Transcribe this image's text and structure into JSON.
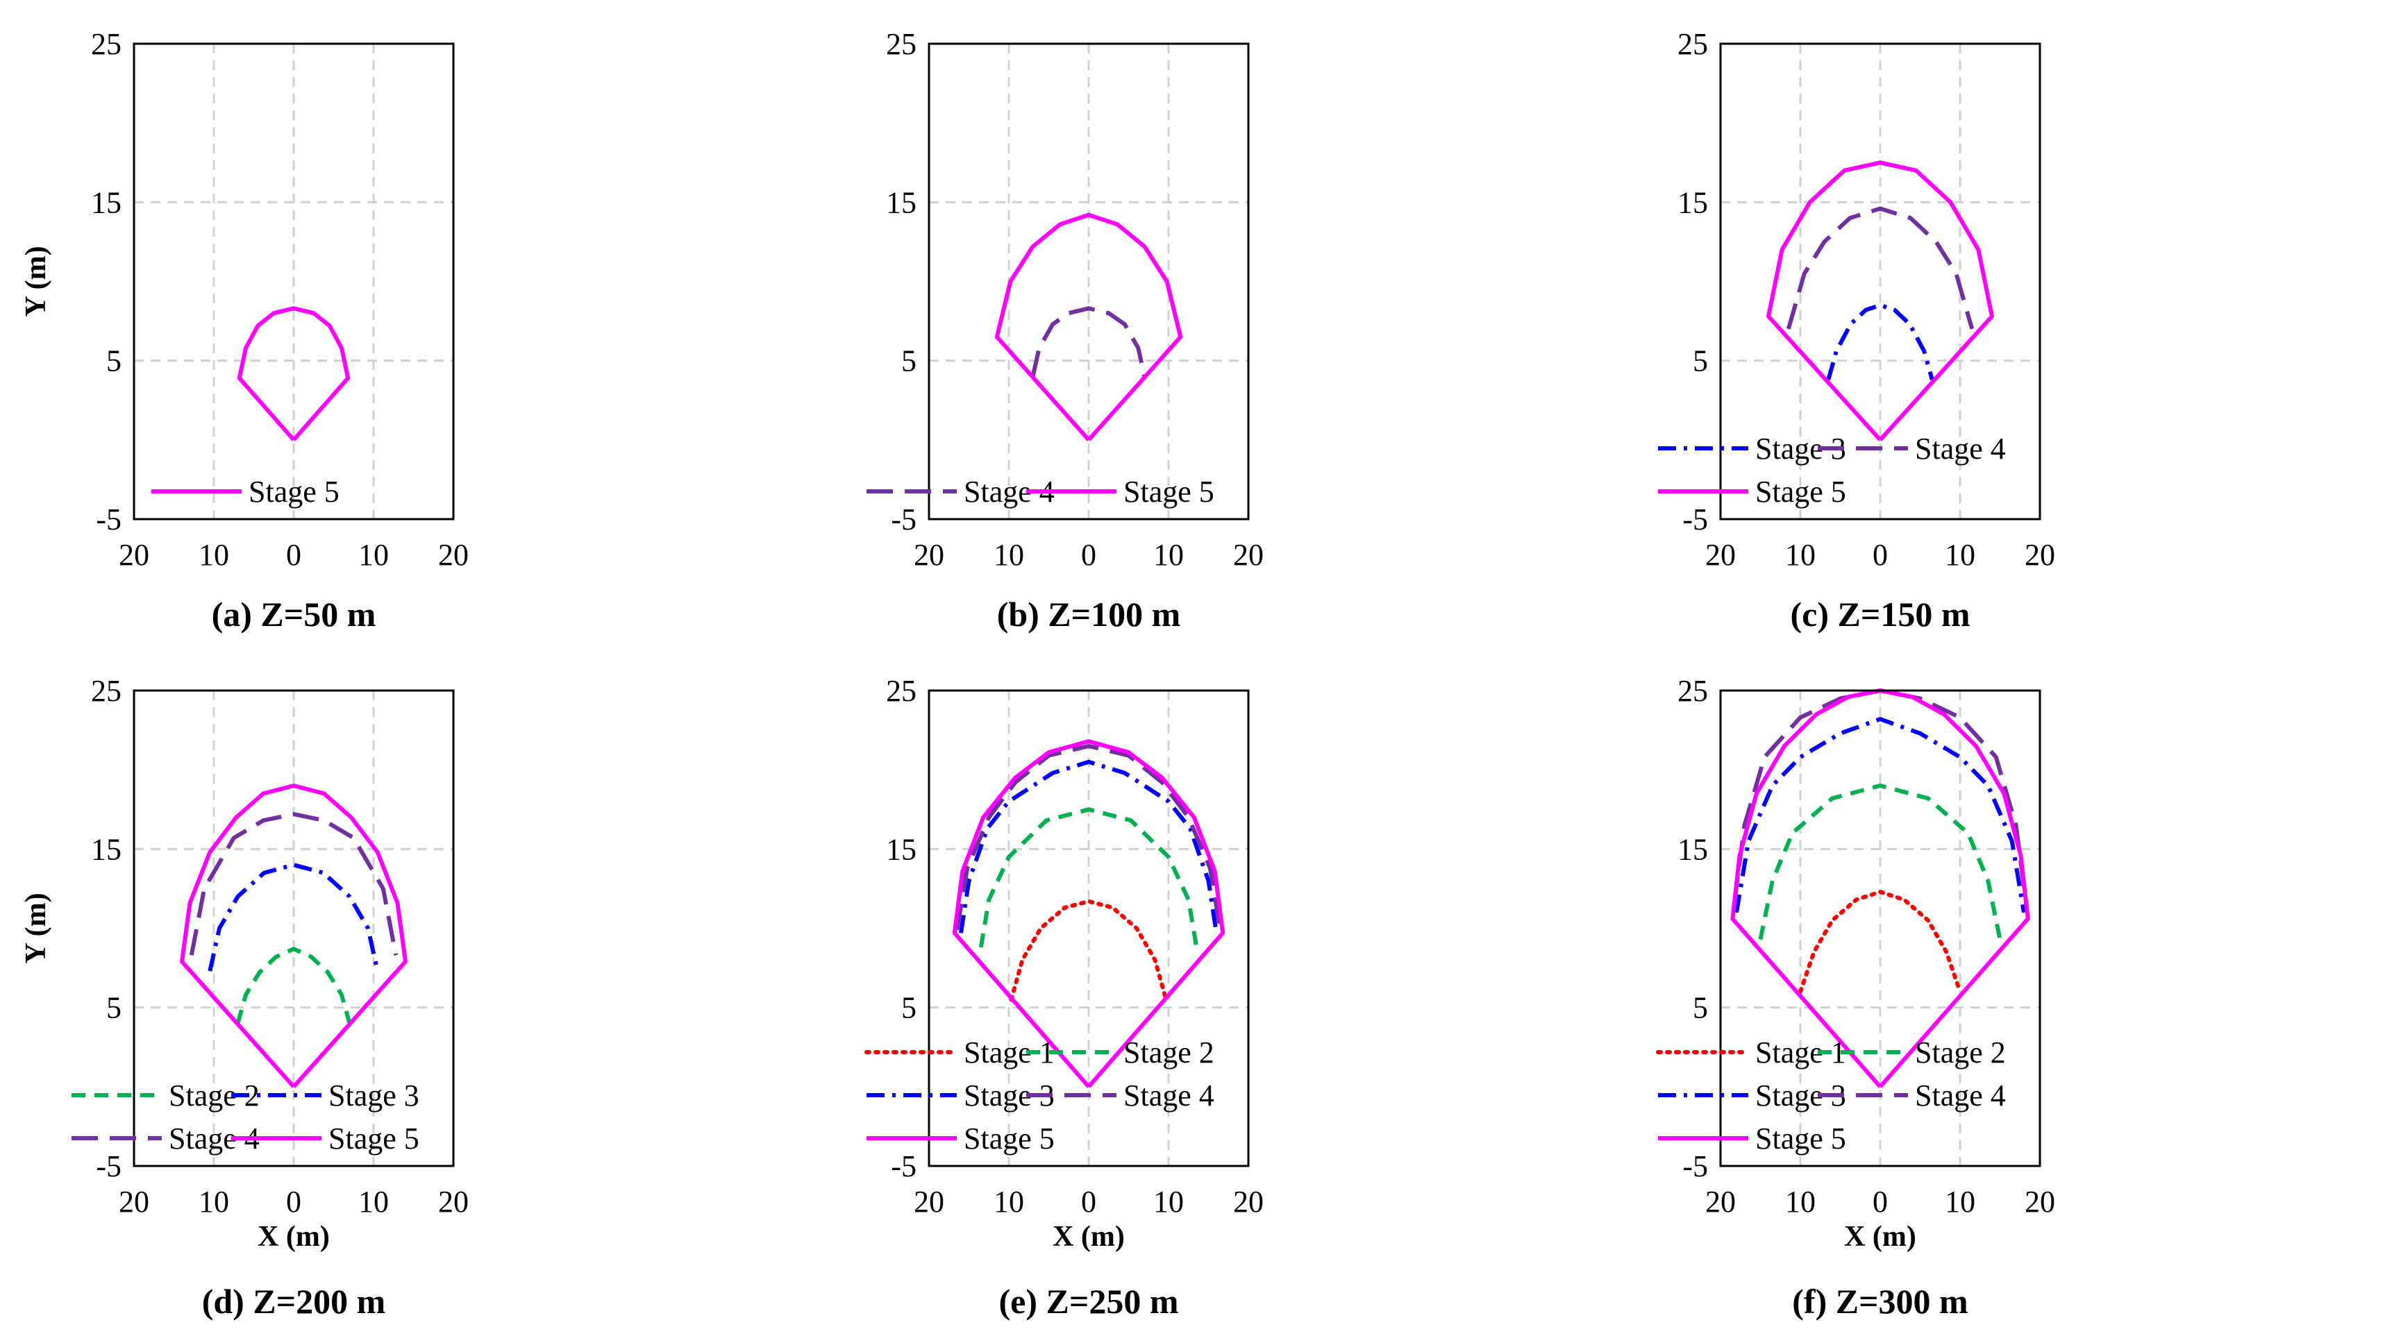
{
  "styles": {
    "Stage 1": {
      "color": "#ff0000",
      "dash": "dotted"
    },
    "Stage 2": {
      "color": "#00b050",
      "dash": "dashed"
    },
    "Stage 3": {
      "color": "#0000ff",
      "dash": "dashdot"
    },
    "Stage 4": {
      "color": "#7030a0",
      "dash": "longdash"
    },
    "Stage 5": {
      "color": "#ff00ff",
      "dash": "solid"
    }
  },
  "chart_data": [
    {
      "type": "line",
      "caption": "(a) Z=50 m",
      "xlabel": "",
      "ylabel": "Y (m)",
      "xlim": [
        -20,
        20
      ],
      "ylim": [
        -5,
        25
      ],
      "xtick_labels": [
        "20",
        "10",
        "0",
        "10",
        "20"
      ],
      "ytick_labels": [
        "-5",
        "5",
        "15",
        "25"
      ],
      "grid": true,
      "series": [
        {
          "name": "Stage 5",
          "points": [
            [
              0,
              0
            ],
            [
              6.8,
              3.9
            ],
            [
              6,
              5.8
            ],
            [
              4.5,
              7.2
            ],
            [
              2.5,
              8
            ],
            [
              0,
              8.3
            ],
            [
              -2.5,
              8
            ],
            [
              -4.5,
              7.2
            ],
            [
              -6,
              5.8
            ],
            [
              -6.8,
              3.9
            ],
            [
              0,
              0
            ]
          ]
        }
      ]
    },
    {
      "type": "line",
      "caption": "(b) Z=100 m",
      "xlabel": "",
      "ylabel": "",
      "xlim": [
        -20,
        20
      ],
      "ylim": [
        -5,
        25
      ],
      "xtick_labels": [
        "20",
        "10",
        "0",
        "10",
        "20"
      ],
      "ytick_labels": [
        "-5",
        "5",
        "15",
        "25"
      ],
      "grid": true,
      "series": [
        {
          "name": "Stage 4",
          "points": [
            [
              -7,
              4
            ],
            [
              -6.2,
              5.8
            ],
            [
              -4.5,
              7.3
            ],
            [
              -2.5,
              8
            ],
            [
              0,
              8.3
            ],
            [
              2.5,
              8
            ],
            [
              4.5,
              7.3
            ],
            [
              6.2,
              5.8
            ],
            [
              7,
              4
            ]
          ]
        },
        {
          "name": "Stage 5",
          "points": [
            [
              0,
              0
            ],
            [
              11.5,
              6.5
            ],
            [
              9.8,
              10
            ],
            [
              7,
              12.2
            ],
            [
              3.6,
              13.6
            ],
            [
              0,
              14.2
            ],
            [
              -3.6,
              13.6
            ],
            [
              -7,
              12.2
            ],
            [
              -9.8,
              10
            ],
            [
              -11.5,
              6.5
            ],
            [
              0,
              0
            ]
          ]
        }
      ]
    },
    {
      "type": "line",
      "caption": "(c) Z=150 m",
      "xlabel": "",
      "ylabel": "",
      "xlim": [
        -20,
        20
      ],
      "ylim": [
        -5,
        25
      ],
      "xtick_labels": [
        "20",
        "10",
        "0",
        "10",
        "20"
      ],
      "ytick_labels": [
        "-5",
        "5",
        "15",
        "25"
      ],
      "grid": true,
      "series": [
        {
          "name": "Stage 3",
          "points": [
            [
              -6.5,
              3.8
            ],
            [
              -5.5,
              5.6
            ],
            [
              -3.7,
              7.3
            ],
            [
              -1.8,
              8.2
            ],
            [
              0,
              8.5
            ],
            [
              1.8,
              8.2
            ],
            [
              3.7,
              7.3
            ],
            [
              5.5,
              5.6
            ],
            [
              6.5,
              3.8
            ]
          ]
        },
        {
          "name": "Stage 4",
          "points": [
            [
              -11.5,
              7
            ],
            [
              -9.5,
              10.5
            ],
            [
              -7,
              12.5
            ],
            [
              -3.8,
              14
            ],
            [
              0,
              14.6
            ],
            [
              3.8,
              14
            ],
            [
              7,
              12.5
            ],
            [
              9.5,
              10.5
            ],
            [
              11.5,
              7
            ]
          ]
        },
        {
          "name": "Stage 5",
          "points": [
            [
              0,
              0
            ],
            [
              14,
              7.8
            ],
            [
              12.3,
              12
            ],
            [
              8.8,
              15
            ],
            [
              4.5,
              17
            ],
            [
              0,
              17.5
            ],
            [
              -4.5,
              17
            ],
            [
              -8.8,
              15
            ],
            [
              -12.3,
              12
            ],
            [
              -14,
              7.8
            ],
            [
              0,
              0
            ]
          ]
        }
      ]
    },
    {
      "type": "line",
      "caption": "(d) Z=200 m",
      "xlabel": "X (m)",
      "ylabel": "Y (m)",
      "xlim": [
        -20,
        20
      ],
      "ylim": [
        -5,
        25
      ],
      "xtick_labels": [
        "20",
        "10",
        "0",
        "10",
        "20"
      ],
      "ytick_labels": [
        "-5",
        "5",
        "15",
        "25"
      ],
      "grid": true,
      "series": [
        {
          "name": "Stage 2",
          "points": [
            [
              -7,
              4
            ],
            [
              -6,
              5.8
            ],
            [
              -4.3,
              7.2
            ],
            [
              -2.2,
              8.2
            ],
            [
              0,
              8.7
            ],
            [
              2.2,
              8.2
            ],
            [
              4.3,
              7.2
            ],
            [
              6,
              5.8
            ],
            [
              7,
              4
            ]
          ]
        },
        {
          "name": "Stage 3",
          "points": [
            [
              -10.5,
              7.3
            ],
            [
              -9.3,
              10
            ],
            [
              -7,
              12
            ],
            [
              -3.7,
              13.5
            ],
            [
              0,
              14
            ],
            [
              3.7,
              13.5
            ],
            [
              7,
              12
            ],
            [
              9.3,
              10
            ],
            [
              10.5,
              7.3
            ]
          ]
        },
        {
          "name": "Stage 4",
          "points": [
            [
              -12.8,
              8.3
            ],
            [
              -11.2,
              12.5
            ],
            [
              -7.5,
              15.7
            ],
            [
              -3.8,
              16.8
            ],
            [
              0,
              17.2
            ],
            [
              3.8,
              16.8
            ],
            [
              7.5,
              15.7
            ],
            [
              11.2,
              12.5
            ],
            [
              12.8,
              8.3
            ]
          ]
        },
        {
          "name": "Stage 5",
          "points": [
            [
              0,
              0
            ],
            [
              14,
              7.9
            ],
            [
              13,
              11.6
            ],
            [
              10.5,
              14.8
            ],
            [
              7.2,
              17
            ],
            [
              3.8,
              18.5
            ],
            [
              0,
              19
            ],
            [
              -3.8,
              18.5
            ],
            [
              -7.2,
              17
            ],
            [
              -10.5,
              14.8
            ],
            [
              -13,
              11.6
            ],
            [
              -14,
              7.9
            ],
            [
              0,
              0
            ]
          ]
        }
      ]
    },
    {
      "type": "line",
      "caption": "(e) Z=250 m",
      "xlabel": "X (m)",
      "ylabel": "",
      "xlim": [
        -20,
        20
      ],
      "ylim": [
        -5,
        25
      ],
      "xtick_labels": [
        "20",
        "10",
        "0",
        "10",
        "20"
      ],
      "ytick_labels": [
        "-5",
        "5",
        "15",
        "25"
      ],
      "grid": true,
      "series": [
        {
          "name": "Stage 1",
          "points": [
            [
              -9.7,
              5.5
            ],
            [
              -8.3,
              8
            ],
            [
              -6,
              10
            ],
            [
              -3,
              11.3
            ],
            [
              0,
              11.7
            ],
            [
              3,
              11.3
            ],
            [
              6,
              10
            ],
            [
              8.3,
              8
            ],
            [
              9.7,
              5.5
            ]
          ]
        },
        {
          "name": "Stage 2",
          "points": [
            [
              -13.5,
              8.8
            ],
            [
              -12.5,
              11.8
            ],
            [
              -10,
              14.5
            ],
            [
              -5.3,
              16.8
            ],
            [
              0,
              17.5
            ],
            [
              5.3,
              16.8
            ],
            [
              10,
              14.5
            ],
            [
              12.5,
              11.8
            ],
            [
              13.5,
              8.8
            ]
          ]
        },
        {
          "name": "Stage 3",
          "points": [
            [
              -16,
              9.7
            ],
            [
              -15,
              13
            ],
            [
              -12.7,
              16.3
            ],
            [
              -10,
              18
            ],
            [
              -4.5,
              19.8
            ],
            [
              0,
              20.5
            ],
            [
              4.5,
              19.8
            ],
            [
              10,
              18
            ],
            [
              12.7,
              16.3
            ],
            [
              15,
              13
            ],
            [
              16,
              9.7
            ]
          ]
        },
        {
          "name": "Stage 4",
          "points": [
            [
              -16.5,
              9.9
            ],
            [
              -15.2,
              13.8
            ],
            [
              -12.5,
              17
            ],
            [
              -9.2,
              19.2
            ],
            [
              -5,
              20.9
            ],
            [
              0,
              21.5
            ],
            [
              5,
              20.9
            ],
            [
              9.2,
              19.2
            ],
            [
              12.5,
              17
            ],
            [
              15.2,
              13.8
            ],
            [
              16.5,
              9.9
            ]
          ]
        },
        {
          "name": "Stage 5",
          "points": [
            [
              0,
              0
            ],
            [
              16.8,
              9.7
            ],
            [
              15.8,
              13.6
            ],
            [
              13.2,
              17
            ],
            [
              9.2,
              19.5
            ],
            [
              5,
              21.1
            ],
            [
              0,
              21.8
            ],
            [
              -5,
              21.1
            ],
            [
              -9.2,
              19.5
            ],
            [
              -13.2,
              17
            ],
            [
              -15.8,
              13.6
            ],
            [
              -16.8,
              9.7
            ],
            [
              0,
              0
            ]
          ]
        }
      ]
    },
    {
      "type": "line",
      "caption": "(f) Z=300 m",
      "xlabel": "X (m)",
      "ylabel": "",
      "xlim": [
        -20,
        20
      ],
      "ylim": [
        -5,
        25
      ],
      "xtick_labels": [
        "20",
        "10",
        "0",
        "10",
        "20"
      ],
      "ytick_labels": [
        "-5",
        "5",
        "15",
        "25"
      ],
      "grid": true,
      "series": [
        {
          "name": "Stage 1",
          "points": [
            [
              -10,
              6
            ],
            [
              -8.3,
              8.5
            ],
            [
              -6,
              10.5
            ],
            [
              -3,
              11.8
            ],
            [
              0,
              12.3
            ],
            [
              3,
              11.8
            ],
            [
              6,
              10.5
            ],
            [
              8.3,
              8.5
            ],
            [
              10,
              6
            ]
          ]
        },
        {
          "name": "Stage 2",
          "points": [
            [
              -15,
              9.3
            ],
            [
              -13.5,
              13
            ],
            [
              -11,
              16
            ],
            [
              -6,
              18.2
            ],
            [
              0,
              19
            ],
            [
              6,
              18.2
            ],
            [
              11,
              16
            ],
            [
              13.5,
              13
            ],
            [
              15,
              9.3
            ]
          ]
        },
        {
          "name": "Stage 3",
          "points": [
            [
              -18,
              11
            ],
            [
              -16.5,
              15.5
            ],
            [
              -13.5,
              19
            ],
            [
              -10,
              20.8
            ],
            [
              -5,
              22.3
            ],
            [
              0,
              23.2
            ],
            [
              5,
              22.3
            ],
            [
              10,
              20.8
            ],
            [
              13.5,
              19
            ],
            [
              16.5,
              15.5
            ],
            [
              18,
              11
            ]
          ]
        },
        {
          "name": "Stage 4",
          "points": [
            [
              -18.3,
              11.5
            ],
            [
              -17,
              16.5
            ],
            [
              -14.5,
              20.8
            ],
            [
              -10,
              23.3
            ],
            [
              -5,
              24.5
            ],
            [
              0,
              25
            ],
            [
              5,
              24.5
            ],
            [
              10,
              23.3
            ],
            [
              14.5,
              20.8
            ],
            [
              17,
              16.5
            ],
            [
              18.3,
              11.5
            ]
          ]
        },
        {
          "name": "Stage 5",
          "points": [
            [
              0,
              0
            ],
            [
              18.5,
              10.6
            ],
            [
              17.6,
              14.6
            ],
            [
              15.5,
              18.5
            ],
            [
              12,
              21.5
            ],
            [
              8,
              23.5
            ],
            [
              4,
              24.6
            ],
            [
              0,
              25
            ],
            [
              -4,
              24.6
            ],
            [
              -8,
              23.5
            ],
            [
              -12,
              21.5
            ],
            [
              -15.5,
              18.5
            ],
            [
              -17.6,
              14.6
            ],
            [
              -18.5,
              10.6
            ],
            [
              0,
              0
            ]
          ]
        }
      ]
    }
  ]
}
